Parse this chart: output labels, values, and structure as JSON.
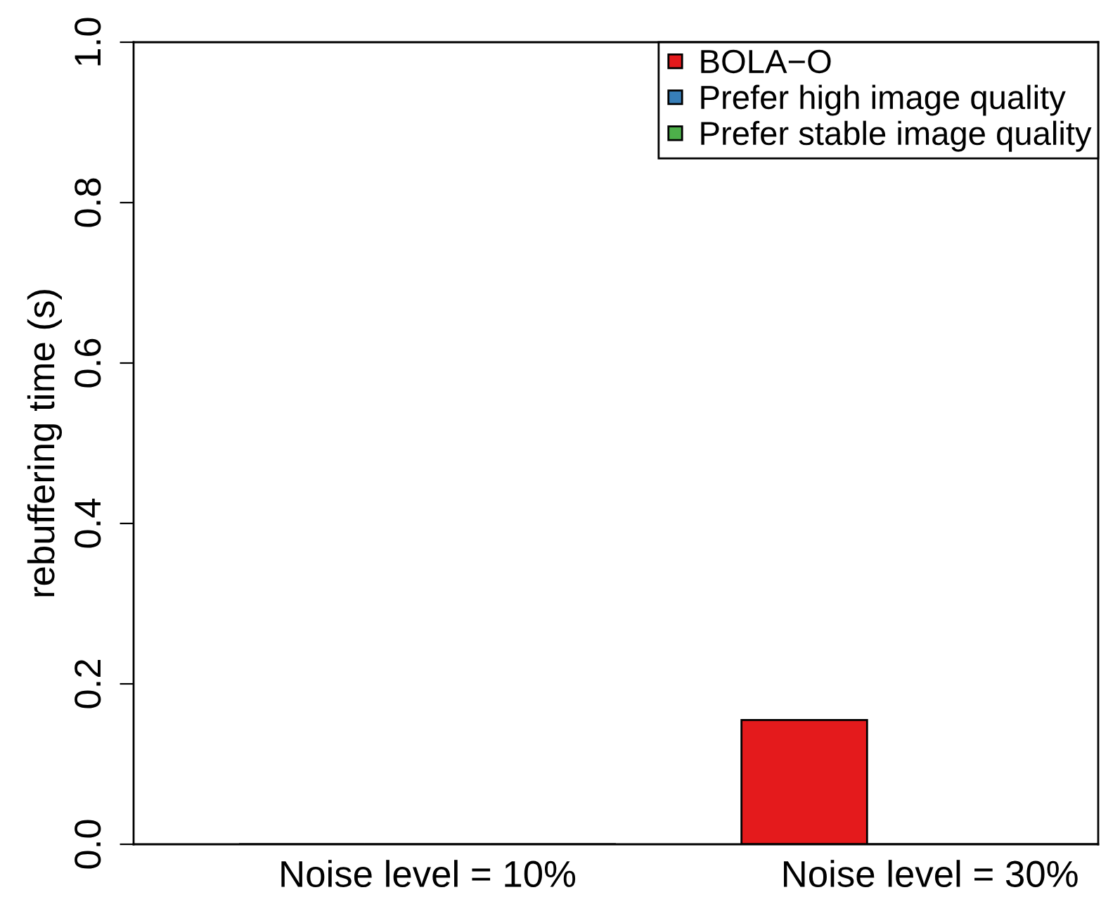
{
  "chart_data": {
    "type": "bar",
    "ylabel": "rebuffering time (s)",
    "categories": [
      "Noise level = 10%",
      "Noise level = 30%"
    ],
    "series": [
      {
        "name": "BOLA−O",
        "color": "#e41a1c",
        "values": [
          0,
          0.155
        ]
      },
      {
        "name": "Prefer high image quality",
        "color": "#377eb8",
        "values": [
          0,
          0
        ]
      },
      {
        "name": "Prefer stable image quality",
        "color": "#4daf4a",
        "values": [
          0,
          0
        ]
      }
    ],
    "ylim": [
      0,
      1
    ],
    "yticks": [
      {
        "value": 0,
        "label": "0.0"
      },
      {
        "value": 0.2,
        "label": "0.2"
      },
      {
        "value": 0.4,
        "label": "0.4"
      },
      {
        "value": 0.6,
        "label": "0.6"
      },
      {
        "value": 0.8,
        "label": "0.8"
      },
      {
        "value": 1,
        "label": "1.0"
      }
    ],
    "grid": false,
    "legend": "top right"
  }
}
